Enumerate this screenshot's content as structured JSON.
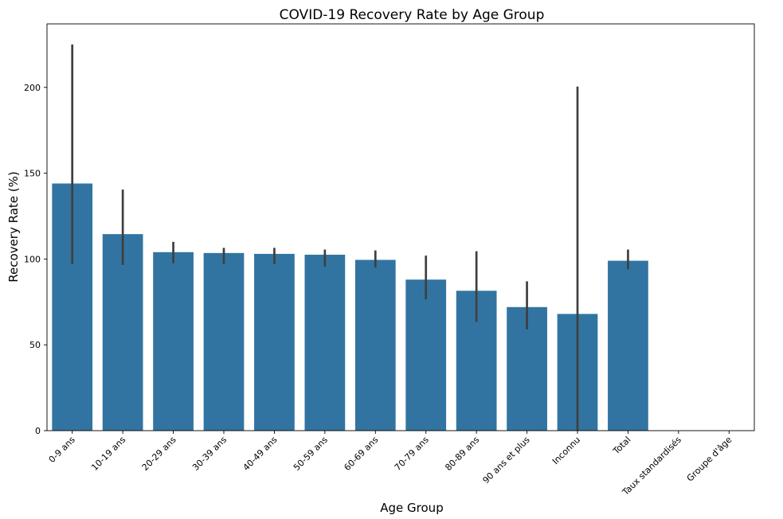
{
  "chart_data": {
    "type": "bar",
    "title": "COVID-19 Recovery Rate by Age Group",
    "xlabel": "Age Group",
    "ylabel": "Recovery Rate (%)",
    "ylim": [
      0,
      237
    ],
    "yticks": [
      0,
      50,
      100,
      150,
      200
    ],
    "categories": [
      "0-9 ans",
      "10-19 ans",
      "20-29 ans",
      "30-39 ans",
      "40-49 ans",
      "50-59 ans",
      "60-69 ans",
      "70-79 ans",
      "80-89 ans",
      "90 ans et plus",
      "Inconnu",
      "Total",
      "Taux standardisés",
      "Groupe d'âge"
    ],
    "values": [
      144,
      114.5,
      104,
      103.5,
      103,
      102.5,
      99.5,
      88,
      81.5,
      72,
      68,
      99,
      null,
      null
    ],
    "error_low": [
      97,
      96.5,
      97.5,
      97,
      97,
      95.5,
      95,
      76.5,
      63.5,
      59,
      0,
      94,
      null,
      null
    ],
    "error_high": [
      225,
      140.5,
      110,
      106.5,
      106.5,
      105.5,
      105,
      102,
      104.5,
      87,
      200.5,
      105.5,
      null,
      null
    ],
    "bar_color": "#3274a1",
    "errorbar_color": "#3f3f3f",
    "grid": false,
    "legend": "none"
  }
}
